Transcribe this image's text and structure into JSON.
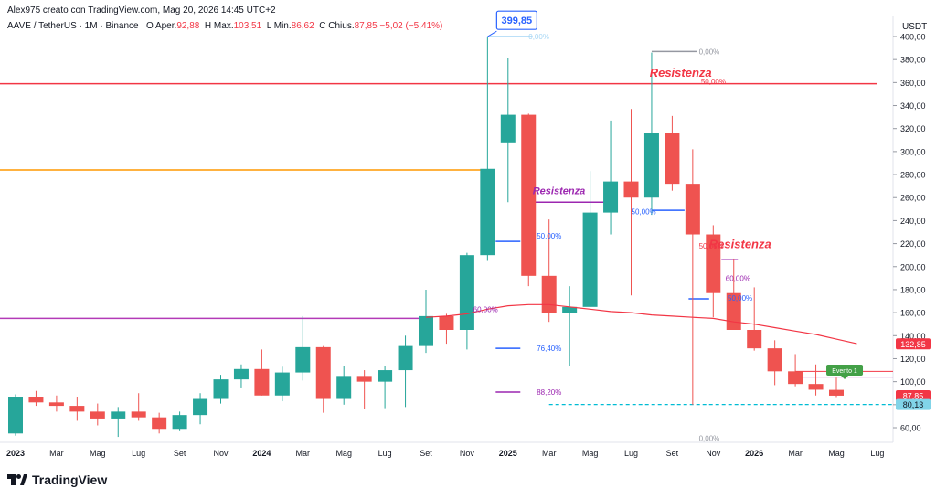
{
  "header": {
    "creator": "Alex975 creato con TradingView.com, Mag 20, 2026 14:45 UTC+2",
    "symbol": "AAVE / TetherUS · 1M · Binance",
    "open_label": "O",
    "open_prefix": "Aper.",
    "open_value": "92,88",
    "high_label": "H",
    "high_prefix": "Max.",
    "high_value": "103,51",
    "low_label": "L",
    "low_prefix": "Min.",
    "low_value": "86,62",
    "close_label": "C",
    "close_prefix": "Chius.",
    "close_value": "87,85",
    "change": "−5,02 (−5,41%)"
  },
  "currency": "USDT",
  "logo": "TradingView",
  "colors": {
    "up": "#26a69a",
    "down": "#ef5350",
    "ma": "#f23645",
    "red_line": "#f23645",
    "orange_line": "#ff9800",
    "purple_line": "#b33ab7",
    "fib_blue": "#2962ff",
    "annotation_red": "#f23645",
    "annotation_purple": "#9c27b0"
  },
  "chart_data": {
    "type": "candlestick",
    "symbol": "AAVE / TetherUS",
    "interval": "1M",
    "exchange": "Binance",
    "ylim": [
      50,
      410
    ],
    "y_ticks": [
      60,
      80,
      100,
      120,
      140,
      160,
      180,
      200,
      220,
      240,
      260,
      280,
      300,
      320,
      340,
      360,
      380,
      400
    ],
    "y_tick_labels": [
      "60,00",
      "80,00",
      "100,00",
      "120,00",
      "140,00",
      "160,00",
      "180,00",
      "200,00",
      "220,00",
      "240,00",
      "260,00",
      "280,00",
      "300,00",
      "320,00",
      "340,00",
      "360,00",
      "380,00",
      "400,00"
    ],
    "x_labels": [
      {
        "label": "2023",
        "bold": true,
        "i": 0
      },
      {
        "label": "Mar",
        "i": 2
      },
      {
        "label": "Mag",
        "i": 4
      },
      {
        "label": "Lug",
        "i": 6
      },
      {
        "label": "Set",
        "i": 8
      },
      {
        "label": "Nov",
        "i": 10
      },
      {
        "label": "2024",
        "bold": true,
        "i": 12
      },
      {
        "label": "Mar",
        "i": 14
      },
      {
        "label": "Mag",
        "i": 16
      },
      {
        "label": "Lug",
        "i": 18
      },
      {
        "label": "Set",
        "i": 20
      },
      {
        "label": "Nov",
        "i": 22
      },
      {
        "label": "2025",
        "bold": true,
        "i": 24
      },
      {
        "label": "Mar",
        "i": 26
      },
      {
        "label": "Mag",
        "i": 28
      },
      {
        "label": "Lug",
        "i": 30
      },
      {
        "label": "Set",
        "i": 32
      },
      {
        "label": "Nov",
        "i": 34
      },
      {
        "label": "2026",
        "bold": true,
        "i": 36
      },
      {
        "label": "Mar",
        "i": 38
      },
      {
        "label": "Mag",
        "i": 40
      },
      {
        "label": "Lug",
        "i": 42
      }
    ],
    "candles": [
      {
        "o": 55,
        "h": 89,
        "l": 53,
        "c": 87
      },
      {
        "o": 87,
        "h": 92,
        "l": 79,
        "c": 82
      },
      {
        "o": 82,
        "h": 88,
        "l": 74,
        "c": 79
      },
      {
        "o": 79,
        "h": 87,
        "l": 66,
        "c": 74
      },
      {
        "o": 74,
        "h": 81,
        "l": 62,
        "c": 68
      },
      {
        "o": 68,
        "h": 78,
        "l": 52,
        "c": 74
      },
      {
        "o": 74,
        "h": 90,
        "l": 66,
        "c": 69
      },
      {
        "o": 69,
        "h": 73,
        "l": 55,
        "c": 59
      },
      {
        "o": 59,
        "h": 74,
        "l": 57,
        "c": 71
      },
      {
        "o": 71,
        "h": 90,
        "l": 63,
        "c": 85
      },
      {
        "o": 85,
        "h": 106,
        "l": 81,
        "c": 102
      },
      {
        "o": 102,
        "h": 115,
        "l": 95,
        "c": 111
      },
      {
        "o": 111,
        "h": 128,
        "l": 88,
        "c": 88
      },
      {
        "o": 88,
        "h": 113,
        "l": 83,
        "c": 108
      },
      {
        "o": 108,
        "h": 157,
        "l": 101,
        "c": 130
      },
      {
        "o": 130,
        "h": 131,
        "l": 73,
        "c": 85
      },
      {
        "o": 85,
        "h": 114,
        "l": 80,
        "c": 105
      },
      {
        "o": 105,
        "h": 110,
        "l": 76,
        "c": 100
      },
      {
        "o": 100,
        "h": 114,
        "l": 77,
        "c": 110
      },
      {
        "o": 110,
        "h": 140,
        "l": 78,
        "c": 131
      },
      {
        "o": 131,
        "h": 180,
        "l": 125,
        "c": 157
      },
      {
        "o": 157,
        "h": 159,
        "l": 133,
        "c": 145
      },
      {
        "o": 145,
        "h": 212,
        "l": 128,
        "c": 210
      },
      {
        "o": 210,
        "h": 400,
        "l": 205,
        "c": 285
      },
      {
        "o": 308,
        "h": 381,
        "l": 256,
        "c": 332
      },
      {
        "o": 332,
        "h": 333,
        "l": 183,
        "c": 192
      },
      {
        "o": 192,
        "h": 241,
        "l": 152,
        "c": 160
      },
      {
        "o": 160,
        "h": 183,
        "l": 114,
        "c": 165
      },
      {
        "o": 165,
        "h": 283,
        "l": 165,
        "c": 247
      },
      {
        "o": 247,
        "h": 327,
        "l": 228,
        "c": 274
      },
      {
        "o": 274,
        "h": 337,
        "l": 175,
        "c": 260
      },
      {
        "o": 260,
        "h": 386,
        "l": 245,
        "c": 316
      },
      {
        "o": 316,
        "h": 331,
        "l": 266,
        "c": 272
      },
      {
        "o": 272,
        "h": 302,
        "l": 80,
        "c": 228
      },
      {
        "o": 228,
        "h": 236,
        "l": 156,
        "c": 177
      },
      {
        "o": 177,
        "h": 207,
        "l": 145,
        "c": 145
      },
      {
        "o": 145,
        "h": 182,
        "l": 127,
        "c": 129
      },
      {
        "o": 129,
        "h": 136,
        "l": 97,
        "c": 109
      },
      {
        "o": 109,
        "h": 124,
        "l": 96,
        "c": 98
      },
      {
        "o": 98,
        "h": 115,
        "l": 88,
        "c": 93
      },
      {
        "o": 92.88,
        "h": 103.51,
        "l": 86.62,
        "c": 87.85
      }
    ],
    "moving_average": {
      "start_i": 20,
      "values": [
        156,
        157,
        159,
        163,
        166,
        167,
        167,
        165,
        163,
        161,
        160,
        158,
        157,
        156,
        155,
        152,
        150,
        147,
        144,
        141,
        137,
        133
      ]
    },
    "horizontal_levels": [
      {
        "name": "red-resistance",
        "price": 359,
        "color": "#f23645",
        "from_i": 0,
        "to_i": 42
      },
      {
        "name": "orange-level",
        "price": 284,
        "color": "#ff9800",
        "from_i": 0,
        "to_i": 23
      },
      {
        "name": "purple-level",
        "price": 155,
        "color": "#b33ab7",
        "from_i": 0,
        "to_i": 20
      }
    ],
    "trend_levels": [
      {
        "name": "level-104",
        "price": 104,
        "color": "#b33ab7",
        "from_i": 38,
        "to_i": 42
      },
      {
        "name": "level-109",
        "price": 109,
        "color": "#f23645",
        "from_i": 38,
        "to_i": 42
      },
      {
        "name": "support-80",
        "price": 80.13,
        "color": "#00bcd4",
        "from_i": 26,
        "to_i": 42,
        "dashed": true
      }
    ],
    "fib_labels": [
      {
        "text": "0,00%",
        "price": 400,
        "i": 25,
        "color": "#a5d6f5"
      },
      {
        "text": "50,00%",
        "price": 227,
        "i": 25.4,
        "color": "#2962ff"
      },
      {
        "text": "60,00%",
        "price": 163,
        "i": 22.3,
        "color": "#9c27b0"
      },
      {
        "text": "76,40%",
        "price": 129,
        "i": 25.4,
        "color": "#2962ff"
      },
      {
        "text": "88,20%",
        "price": 91,
        "i": 25.4,
        "color": "#9c27b0"
      },
      {
        "text": "0,00%",
        "price": 387,
        "i": 33.3,
        "color": "#9598a1"
      },
      {
        "text": "50,00%",
        "price": 361,
        "i": 33.4,
        "color": "#f23645"
      },
      {
        "text": "50,00%",
        "price": 248,
        "i": 30,
        "color": "#2962ff"
      },
      {
        "text": "50,00%",
        "price": 218,
        "i": 33.3,
        "color": "#f23645"
      },
      {
        "text": "60,00%",
        "price": 190,
        "i": 34.6,
        "color": "#9c27b0"
      },
      {
        "text": "50,00%",
        "price": 173,
        "i": 34.7,
        "color": "#2962ff"
      },
      {
        "text": "0,00%",
        "price": 51,
        "i": 33.3,
        "color": "#9598a1"
      }
    ],
    "fib_segments": [
      {
        "price": 400,
        "from_i": 23.1,
        "to_i": 25.2,
        "color": "#a5d6f5"
      },
      {
        "price": 222,
        "from_i": 23.4,
        "to_i": 24.6,
        "color": "#2962ff"
      },
      {
        "price": 129,
        "from_i": 23.4,
        "to_i": 24.6,
        "color": "#2962ff"
      },
      {
        "price": 91,
        "from_i": 23.4,
        "to_i": 24.6,
        "color": "#9c27b0"
      },
      {
        "price": 256,
        "from_i": 25.2,
        "to_i": 28.8,
        "color": "#9c27b0"
      },
      {
        "price": 387,
        "from_i": 31,
        "to_i": 33.2,
        "color": "#9598a1"
      },
      {
        "price": 249,
        "from_i": 31,
        "to_i": 32.6,
        "color": "#2962ff"
      },
      {
        "price": 172,
        "from_i": 32.8,
        "to_i": 33.8,
        "color": "#2962ff"
      },
      {
        "price": 206,
        "from_i": 34.4,
        "to_i": 35.2,
        "color": "#9c27b0"
      }
    ],
    "annotations": [
      {
        "text": "Resistenza",
        "price": 365,
        "i": 30.9,
        "color": "#f23645",
        "size": 13
      },
      {
        "text": "Resistenza",
        "price": 263,
        "i": 25.2,
        "color": "#9c27b0",
        "size": 11
      },
      {
        "text": "Resistenza",
        "price": 216,
        "i": 33.8,
        "color": "#f23645",
        "size": 13
      }
    ],
    "callout": {
      "text": "399,85",
      "price": 399.85,
      "i": 23
    },
    "event_flag": {
      "text": "Evento 1",
      "price": 110,
      "i": 39.6
    },
    "price_tags": [
      {
        "text": "132,85",
        "price": 132.85,
        "bg": "#f23645"
      },
      {
        "text": "87,85",
        "price": 87.85,
        "bg": "#f23645"
      },
      {
        "text": "80,13",
        "price": 80.13,
        "bg": "#81d4e8"
      }
    ]
  }
}
